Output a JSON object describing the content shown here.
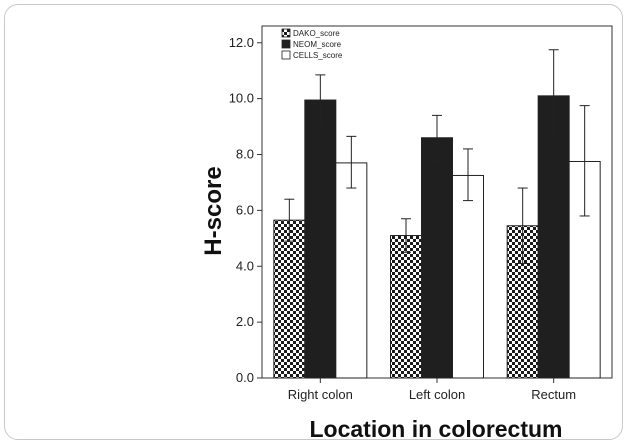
{
  "chart_data": {
    "type": "bar",
    "categories": [
      "Right colon",
      "Left colon",
      "Rectum"
    ],
    "series": [
      {
        "name": "DAKO_score",
        "values": [
          5.65,
          5.1,
          5.45
        ],
        "error_low": [
          4.9,
          4.5,
          4.1
        ],
        "error_high": [
          6.4,
          5.7,
          6.8
        ],
        "fill": "checker"
      },
      {
        "name": "NEOM_score",
        "values": [
          9.95,
          8.6,
          10.1
        ],
        "error_low": [
          9.05,
          7.75,
          8.45
        ],
        "error_high": [
          10.85,
          9.4,
          11.75
        ],
        "fill": "#1f1f1f"
      },
      {
        "name": "CELLS_score",
        "values": [
          7.7,
          7.25,
          7.75
        ],
        "error_low": [
          6.8,
          6.35,
          5.8
        ],
        "error_high": [
          8.65,
          8.2,
          9.75
        ],
        "fill": "#ffffff"
      }
    ],
    "ylabel": "H-score",
    "xlabel": "Location in colorectum",
    "ylim": [
      0,
      12.6
    ],
    "yticks": [
      "0.0",
      "2.0",
      "4.0",
      "6.0",
      "8.0",
      "10.0",
      "12.0"
    ],
    "legend_position": "top-left",
    "grid": false
  }
}
